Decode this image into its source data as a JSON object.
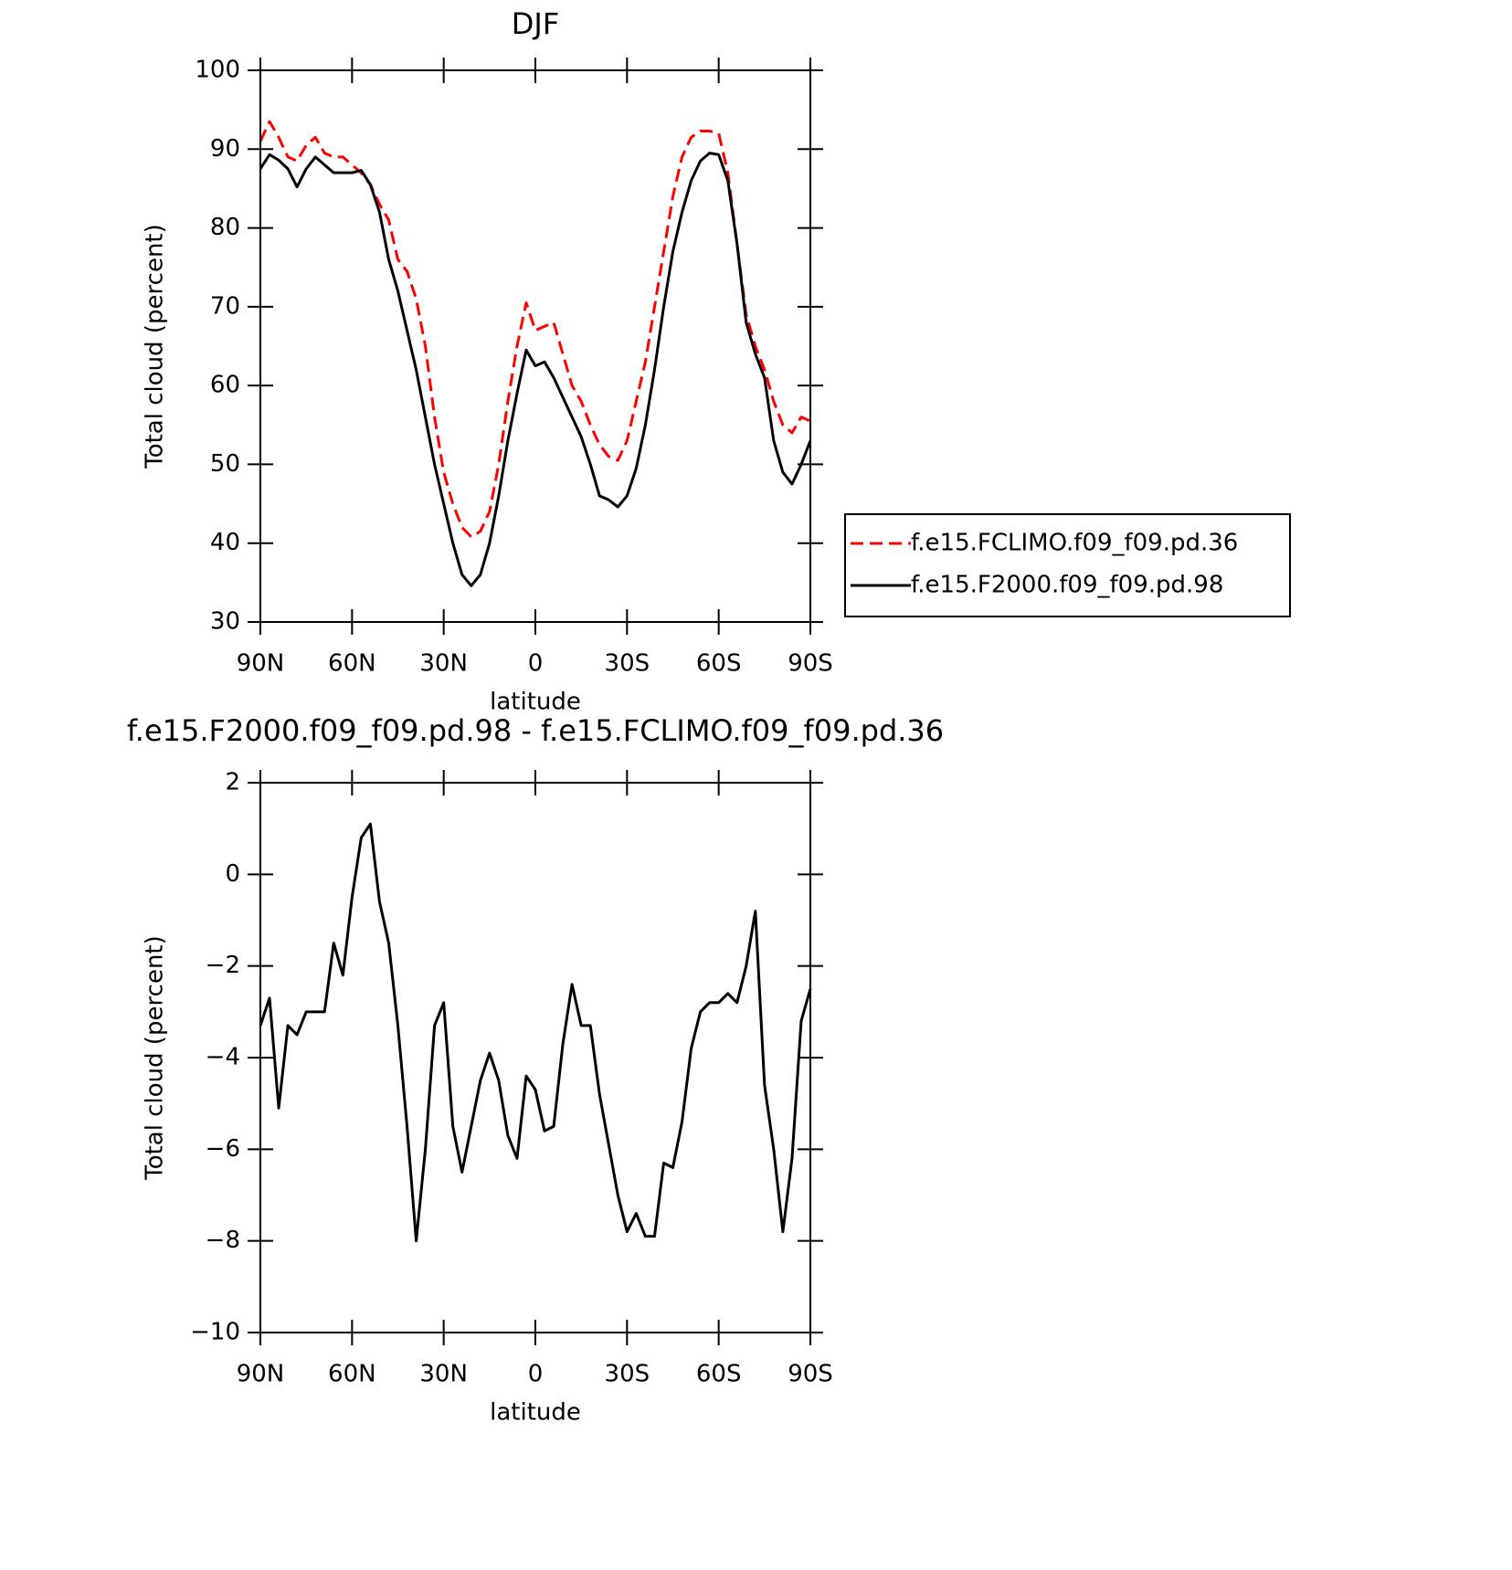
{
  "chart_data": [
    {
      "type": "line",
      "title": "DJF",
      "xlabel": "latitude",
      "ylabel": "Total cloud (percent)",
      "x": [
        90,
        87,
        84,
        81,
        78,
        75,
        72,
        69,
        66,
        63,
        60,
        57,
        54,
        51,
        48,
        45,
        42,
        39,
        36,
        33,
        30,
        27,
        24,
        21,
        18,
        15,
        12,
        9,
        6,
        3,
        0,
        -3,
        -6,
        -9,
        -12,
        -15,
        -18,
        -21,
        -24,
        -27,
        -30,
        -33,
        -36,
        -39,
        -42,
        -45,
        -48,
        -51,
        -54,
        -57,
        -60,
        -63,
        -66,
        -69,
        -72,
        -75,
        -78,
        -81,
        -84,
        -87,
        -90
      ],
      "series": [
        {
          "name": "f.e15.FCLIMO.f09_f09.pd.36",
          "color": "#ff0000",
          "dash": "dashed",
          "values": [
            91,
            93.5,
            91.5,
            89,
            88.5,
            90.5,
            91.5,
            89.5,
            89,
            89,
            88,
            87,
            85.5,
            83,
            81,
            76,
            74.5,
            71,
            65,
            56,
            49,
            45,
            42,
            40.8,
            41.5,
            44,
            50,
            58,
            65,
            70.5,
            67,
            67.5,
            68,
            64,
            60,
            58,
            55,
            52.5,
            51,
            50.5,
            53,
            58,
            63,
            70,
            77,
            84,
            89,
            91.5,
            92.3,
            92.3,
            92,
            87,
            78,
            69,
            65,
            62,
            58,
            55,
            54,
            56,
            55.5
          ]
        },
        {
          "name": "f.e15.F2000.f09_f09.pd.98",
          "color": "#000000",
          "dash": "solid",
          "values": [
            87.5,
            89.3,
            88.6,
            87.5,
            85.2,
            87.5,
            89,
            88,
            87,
            87,
            87,
            87.3,
            85.5,
            82,
            76,
            72,
            67,
            62,
            56,
            50,
            45,
            40,
            36,
            34.6,
            36,
            40,
            46,
            53,
            59,
            64.5,
            62.5,
            63,
            61,
            58.5,
            56,
            53.5,
            50,
            46,
            45.5,
            44.6,
            46,
            49.5,
            55,
            62,
            70,
            77,
            82,
            86,
            88.5,
            89.5,
            89.3,
            86,
            78,
            68,
            64,
            61,
            53,
            49,
            47.5,
            50,
            53
          ]
        }
      ],
      "xlim": [
        90,
        -90
      ],
      "xticks": [
        {
          "value": 90,
          "label": "90N"
        },
        {
          "value": 60,
          "label": "60N"
        },
        {
          "value": 30,
          "label": "30N"
        },
        0,
        {
          "value": -30,
          "label": "30S"
        },
        {
          "value": -60,
          "label": "60S"
        },
        {
          "value": -90,
          "label": "90S"
        }
      ],
      "ylim": [
        30,
        100
      ],
      "yticks": [
        30,
        40,
        50,
        60,
        70,
        80,
        90,
        100
      ],
      "legend": "right"
    },
    {
      "type": "line",
      "title": "f.e15.F2000.f09_f09.pd.98 - f.e15.FCLIMO.f09_f09.pd.36",
      "xlabel": "latitude",
      "ylabel": "Total cloud (percent)",
      "x": [
        90,
        87,
        84,
        81,
        78,
        75,
        72,
        69,
        66,
        63,
        60,
        57,
        54,
        51,
        48,
        45,
        42,
        39,
        36,
        33,
        30,
        27,
        24,
        21,
        18,
        15,
        12,
        9,
        6,
        3,
        0,
        -3,
        -6,
        -9,
        -12,
        -15,
        -18,
        -21,
        -24,
        -27,
        -30,
        -33,
        -36,
        -39,
        -42,
        -45,
        -48,
        -51,
        -54,
        -57,
        -60,
        -63,
        -66,
        -69,
        -72,
        -75,
        -78,
        -81,
        -84,
        -87,
        -90
      ],
      "series": [
        {
          "color": "#000000",
          "dash": "solid",
          "values": [
            -3.3,
            -2.7,
            -5.1,
            -3.3,
            -3.5,
            -3.0,
            -3.0,
            -3.0,
            -1.5,
            -2.2,
            -0.5,
            0.8,
            1.1,
            -0.6,
            -1.5,
            -3.3,
            -5.5,
            -8.0,
            -6.0,
            -3.3,
            -2.8,
            -5.5,
            -6.5,
            -5.5,
            -4.5,
            -3.9,
            -4.5,
            -5.7,
            -6.2,
            -4.4,
            -4.7,
            -5.6,
            -5.5,
            -3.7,
            -2.4,
            -3.3,
            -3.3,
            -4.8,
            -5.9,
            -7.0,
            -7.8,
            -7.4,
            -7.9,
            -7.9,
            -6.3,
            -6.4,
            -5.4,
            -3.8,
            -3.0,
            -2.8,
            -2.8,
            -2.6,
            -2.8,
            -2.0,
            -0.8,
            -4.6,
            -6.0,
            -7.8,
            -6.2,
            -3.2,
            -2.5
          ]
        }
      ],
      "xlim": [
        90,
        -90
      ],
      "xticks": [
        {
          "value": 90,
          "label": "90N"
        },
        {
          "value": 60,
          "label": "60N"
        },
        {
          "value": 30,
          "label": "30N"
        },
        0,
        {
          "value": -30,
          "label": "30S"
        },
        {
          "value": -60,
          "label": "60S"
        },
        {
          "value": -90,
          "label": "90S"
        }
      ],
      "ylim": [
        -10,
        2
      ],
      "yticks": [
        {
          "value": -10,
          "label": "−10"
        },
        {
          "value": -8,
          "label": "−8"
        },
        {
          "value": -6,
          "label": "−6"
        },
        {
          "value": -4,
          "label": "−4"
        },
        {
          "value": -2,
          "label": "−2"
        },
        0,
        2
      ]
    }
  ]
}
